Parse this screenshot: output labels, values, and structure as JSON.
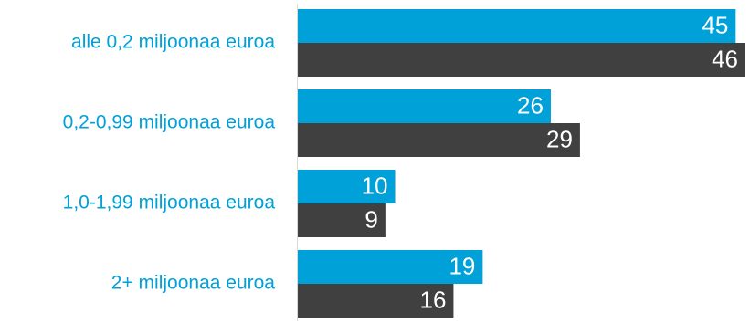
{
  "chart_data": {
    "type": "bar",
    "orientation": "horizontal",
    "categories": [
      "alle 0,2 miljoonaa euroa",
      "0,2-0,99 miljoonaa euroa",
      "1,0-1,99 miljoonaa euroa",
      "2+ miljoonaa euroa"
    ],
    "series": [
      {
        "values": [
          45,
          26,
          10,
          19
        ],
        "color": "#00A0D8"
      },
      {
        "values": [
          46,
          29,
          9,
          16
        ],
        "color": "#404040"
      }
    ],
    "title": "",
    "xlabel": "",
    "ylabel": "",
    "xlim": [
      0,
      46
    ],
    "grid": false,
    "legend": "none",
    "data_labels": true,
    "label_color": "#00A0D8",
    "value_label_color": "#FFFFFF",
    "axis_color": "#D9D9D9"
  }
}
